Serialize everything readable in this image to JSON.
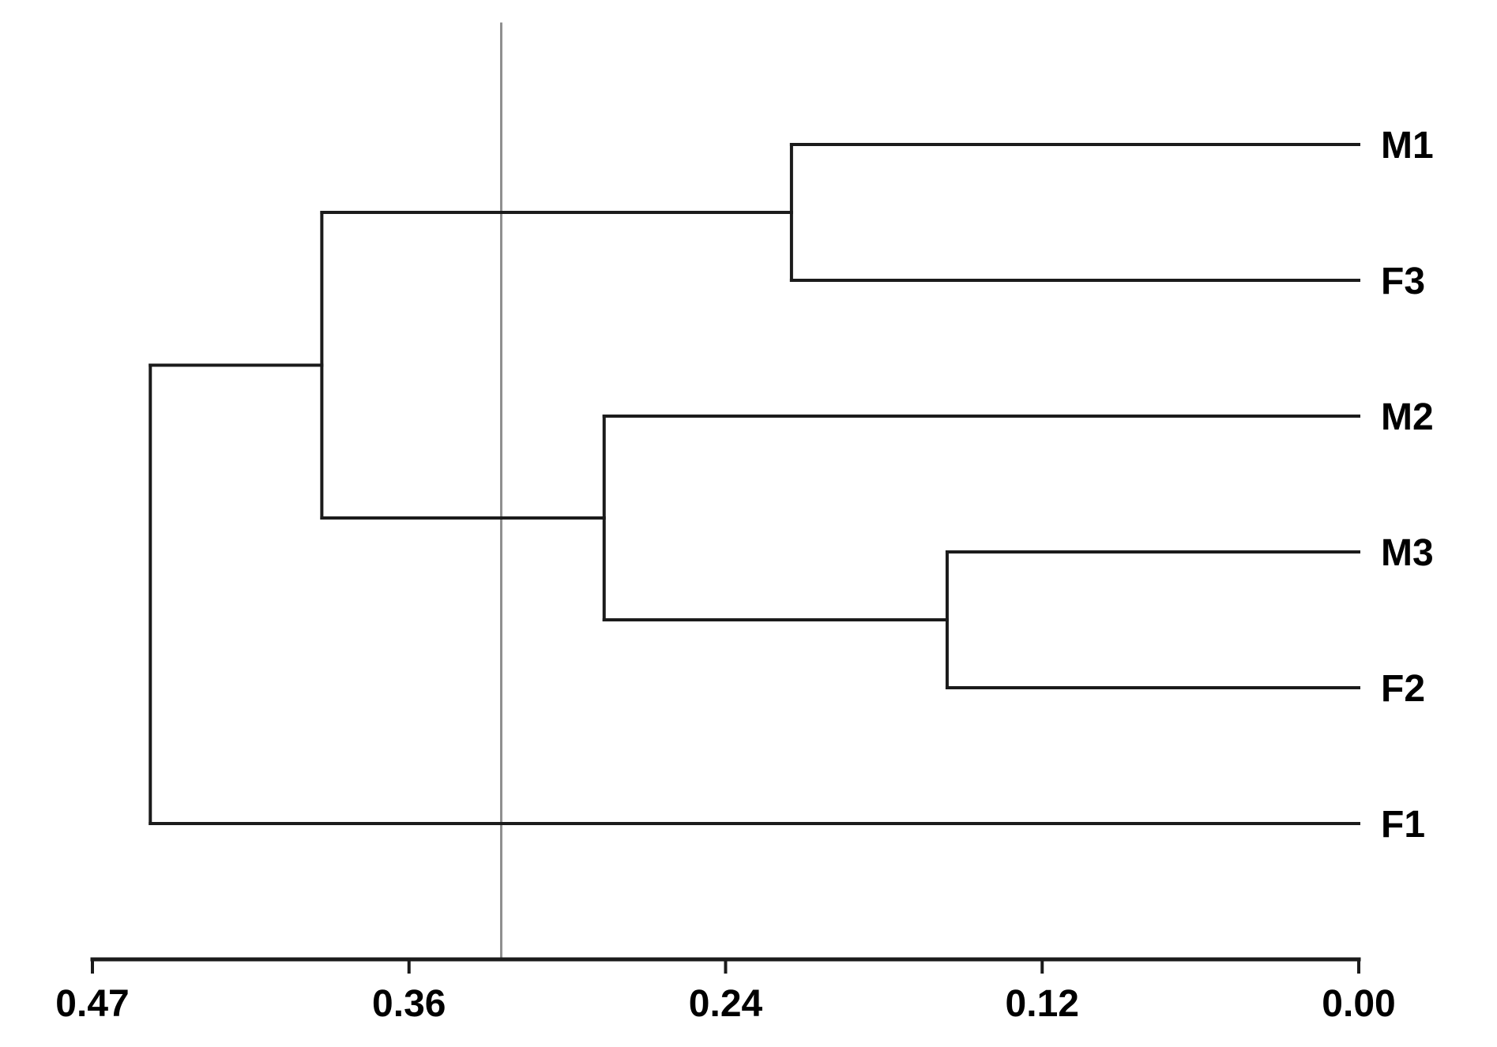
{
  "figure": {
    "kind": "hierarchical clustering dendrogram",
    "background": "#ffffff"
  },
  "chart_data": {
    "type": "dendrogram",
    "orientation": "root-left, leaves-right, similarity axis decreasing to 0.00 at right",
    "leaves": [
      "M1",
      "F3",
      "M2",
      "M3",
      "F2",
      "F1"
    ],
    "tree": {
      "height": 0.458,
      "children": [
        {
          "height": 0.393,
          "children": [
            {
              "height": 0.215,
              "children": [
                {
                  "leaf": "M1"
                },
                {
                  "leaf": "F3"
                }
              ]
            },
            {
              "height": 0.286,
              "children": [
                {
                  "leaf": "M2"
                },
                {
                  "height": 0.156,
                  "children": [
                    {
                      "leaf": "M3"
                    },
                    {
                      "leaf": "F2"
                    }
                  ]
                }
              ]
            }
          ]
        },
        {
          "leaf": "F1"
        }
      ]
    },
    "merges": [
      {
        "members": [
          "M3",
          "F2"
        ],
        "height": 0.156
      },
      {
        "members": [
          "M1",
          "F3"
        ],
        "height": 0.215
      },
      {
        "members": [
          "M2",
          "M3+F2"
        ],
        "height": 0.286
      },
      {
        "members": [
          "M1+F3",
          "M2+M3+F2"
        ],
        "height": 0.393
      },
      {
        "members": [
          "M1+F3+M2+M3+F2",
          "F1"
        ],
        "height": 0.458
      }
    ],
    "axis": {
      "tick_labels": [
        "0.47",
        "0.36",
        "0.24",
        "0.12",
        "0.00"
      ],
      "tick_values": [
        0.47,
        0.36,
        0.24,
        0.12,
        0.0
      ],
      "min": 0.0,
      "max": 0.47,
      "grid": false
    },
    "threshold_line": {
      "value": 0.325
    },
    "colors": {
      "tree_line": "#1b1b1b",
      "axis_line": "#1b1b1b",
      "threshold_line": "#8f8f8f",
      "text": "#000000"
    }
  }
}
